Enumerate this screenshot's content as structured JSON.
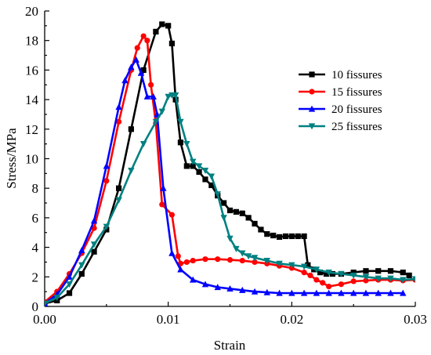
{
  "chart_data": {
    "type": "line",
    "title": "",
    "xlabel": "Strain",
    "ylabel": "Stress/MPa",
    "xlim": [
      0,
      0.03
    ],
    "ylim": [
      0,
      20
    ],
    "x_ticks": [
      0.0,
      0.01,
      0.02,
      0.03
    ],
    "x_tick_labels": [
      "0.00",
      "0.01",
      "0.02",
      "0.03"
    ],
    "y_ticks": [
      0,
      2,
      4,
      6,
      8,
      10,
      12,
      14,
      16,
      18,
      20
    ],
    "y_tick_labels": [
      "0",
      "2",
      "4",
      "6",
      "8",
      "10",
      "12",
      "14",
      "16",
      "18",
      "20"
    ],
    "grid": false,
    "legend_position": "right",
    "series": [
      {
        "name": "10  fissures",
        "color": "#000000",
        "marker": "square",
        "x": [
          0.0,
          0.001,
          0.002,
          0.003,
          0.004,
          0.005,
          0.006,
          0.007,
          0.008,
          0.009,
          0.0095,
          0.01,
          0.0103,
          0.0106,
          0.011,
          0.0115,
          0.012,
          0.0125,
          0.013,
          0.0135,
          0.014,
          0.0145,
          0.015,
          0.0155,
          0.016,
          0.0165,
          0.017,
          0.0175,
          0.018,
          0.0185,
          0.019,
          0.0195,
          0.02,
          0.0205,
          0.021,
          0.0213,
          0.0218,
          0.0223,
          0.0228,
          0.0233,
          0.024,
          0.025,
          0.026,
          0.027,
          0.028,
          0.029,
          0.0295
        ],
        "y": [
          0.2,
          0.4,
          0.9,
          2.2,
          3.7,
          5.2,
          8.0,
          12.0,
          16.0,
          18.6,
          19.1,
          19.0,
          17.8,
          14.0,
          11.1,
          9.5,
          9.5,
          9.1,
          8.6,
          8.2,
          7.5,
          7.0,
          6.5,
          6.4,
          6.3,
          6.0,
          5.6,
          5.2,
          4.9,
          4.8,
          4.7,
          4.75,
          4.75,
          4.75,
          4.75,
          2.8,
          2.5,
          2.3,
          2.2,
          2.2,
          2.2,
          2.3,
          2.4,
          2.4,
          2.4,
          2.3,
          2.1
        ]
      },
      {
        "name": "15 fissures",
        "color": "#ff0000",
        "marker": "circle",
        "x": [
          0.0,
          0.001,
          0.002,
          0.003,
          0.004,
          0.005,
          0.006,
          0.007,
          0.0075,
          0.008,
          0.0083,
          0.0086,
          0.009,
          0.0095,
          0.0103,
          0.0108,
          0.011,
          0.0115,
          0.012,
          0.013,
          0.014,
          0.015,
          0.016,
          0.017,
          0.018,
          0.019,
          0.02,
          0.021,
          0.0215,
          0.022,
          0.0225,
          0.023,
          0.024,
          0.025,
          0.026,
          0.027,
          0.028,
          0.029,
          0.03
        ],
        "y": [
          0.3,
          1.0,
          2.2,
          3.6,
          5.3,
          8.5,
          12.5,
          16.0,
          17.5,
          18.3,
          18.0,
          15.0,
          12.4,
          6.9,
          6.2,
          3.4,
          2.9,
          3.0,
          3.1,
          3.2,
          3.2,
          3.15,
          3.1,
          3.0,
          2.9,
          2.75,
          2.6,
          2.3,
          2.1,
          1.8,
          1.6,
          1.35,
          1.5,
          1.7,
          1.75,
          1.8,
          1.8,
          1.75,
          1.8
        ]
      },
      {
        "name": "20 fissures",
        "color": "#0000ff",
        "marker": "triangle-up",
        "x": [
          0.0,
          0.001,
          0.002,
          0.003,
          0.004,
          0.005,
          0.006,
          0.0065,
          0.007,
          0.0074,
          0.0078,
          0.0083,
          0.0088,
          0.0091,
          0.0096,
          0.0103,
          0.011,
          0.012,
          0.013,
          0.014,
          0.015,
          0.016,
          0.017,
          0.018,
          0.019,
          0.02,
          0.021,
          0.022,
          0.023,
          0.024,
          0.025,
          0.026,
          0.027,
          0.028,
          0.029
        ],
        "y": [
          0.2,
          0.8,
          2.0,
          3.8,
          5.8,
          9.5,
          13.5,
          15.3,
          16.2,
          16.7,
          15.8,
          14.2,
          14.2,
          13.0,
          8.0,
          3.6,
          2.5,
          1.8,
          1.5,
          1.3,
          1.2,
          1.1,
          1.0,
          0.95,
          0.9,
          0.9,
          0.9,
          0.9,
          0.9,
          0.9,
          0.9,
          0.9,
          0.9,
          0.9,
          0.9
        ]
      },
      {
        "name": "25 fissures",
        "color": "#008080",
        "marker": "triangle-down",
        "x": [
          0.0,
          0.001,
          0.002,
          0.003,
          0.004,
          0.005,
          0.006,
          0.007,
          0.008,
          0.009,
          0.0095,
          0.01,
          0.0103,
          0.0106,
          0.011,
          0.0115,
          0.012,
          0.0125,
          0.013,
          0.0135,
          0.014,
          0.0145,
          0.015,
          0.0155,
          0.016,
          0.0165,
          0.017,
          0.018,
          0.019,
          0.02,
          0.021,
          0.022,
          0.023,
          0.024,
          0.025,
          0.026,
          0.027,
          0.028,
          0.029,
          0.03
        ],
        "y": [
          0.2,
          0.6,
          1.5,
          2.8,
          4.2,
          5.4,
          7.2,
          9.2,
          11.0,
          12.5,
          13.2,
          14.2,
          14.3,
          14.3,
          12.5,
          11.0,
          9.8,
          9.5,
          9.2,
          8.8,
          7.6,
          6.0,
          4.6,
          3.9,
          3.6,
          3.4,
          3.3,
          3.1,
          2.9,
          2.8,
          2.7,
          2.5,
          2.3,
          2.2,
          2.1,
          2.0,
          1.9,
          1.9,
          1.8,
          1.85
        ]
      }
    ]
  }
}
